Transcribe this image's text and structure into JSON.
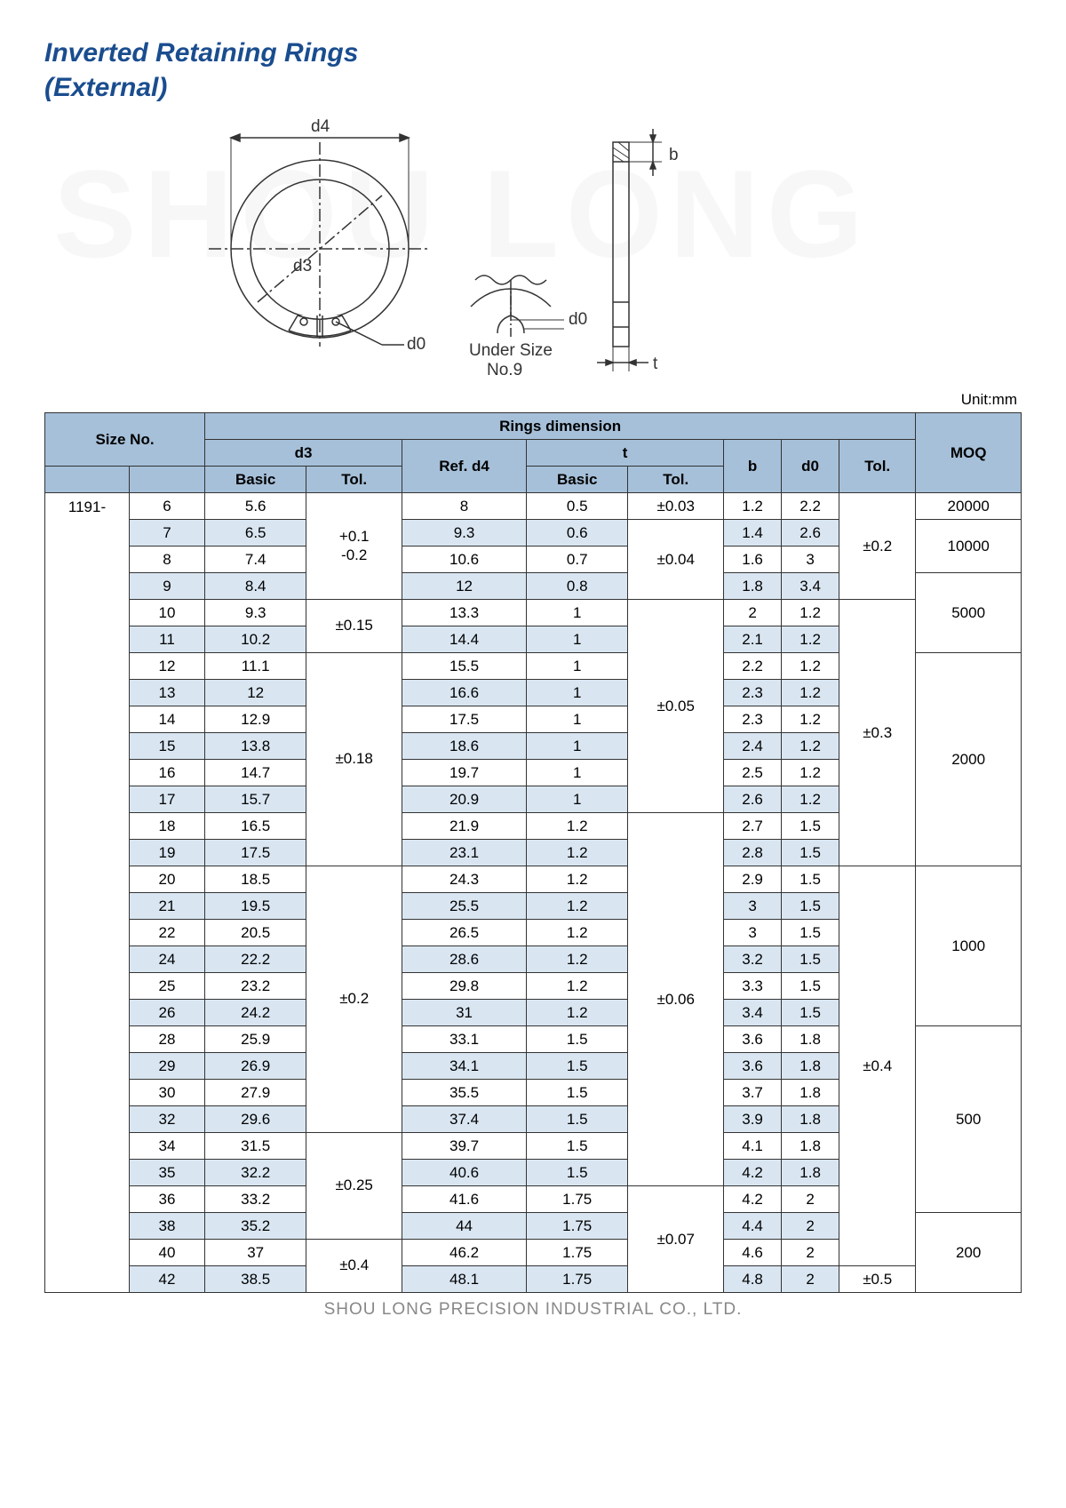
{
  "title_line1": "Inverted Retaining Rings",
  "title_line2": "(External)",
  "watermark": "SHOU LONG",
  "unit": "Unit:mm",
  "diagram": {
    "d4": "d4",
    "d3": "d3",
    "d0": "d0",
    "t": "t",
    "b": "b",
    "under": "Under Size",
    "no9": "No.9"
  },
  "headers": {
    "size_no": "Size No.",
    "rings_dim": "Rings dimension",
    "moq": "MOQ",
    "d3": "d3",
    "ref_d4": "Ref. d4",
    "t": "t",
    "b": "b",
    "d0": "d0",
    "tol": "Tol.",
    "basic": "Basic"
  },
  "prefix": "1191-",
  "rows": [
    {
      "sz": "6",
      "d3b": "5.6",
      "d4": "8",
      "tb": "0.5",
      "ttol": "±0.03",
      "b": "1.2",
      "d0": "2.2"
    },
    {
      "sz": "7",
      "d3b": "6.5",
      "d4": "9.3",
      "tb": "0.6",
      "b": "1.4",
      "d0": "2.6",
      "sh": 1
    },
    {
      "sz": "8",
      "d3b": "7.4",
      "d4": "10.6",
      "tb": "0.7",
      "b": "1.6",
      "d0": "3"
    },
    {
      "sz": "9",
      "d3b": "8.4",
      "d4": "12",
      "tb": "0.8",
      "b": "1.8",
      "d0": "3.4",
      "sh": 1
    },
    {
      "sz": "10",
      "d3b": "9.3",
      "d4": "13.3",
      "tb": "1",
      "b": "2",
      "d0": "1.2"
    },
    {
      "sz": "11",
      "d3b": "10.2",
      "d4": "14.4",
      "tb": "1",
      "b": "2.1",
      "d0": "1.2",
      "sh": 1
    },
    {
      "sz": "12",
      "d3b": "11.1",
      "d4": "15.5",
      "tb": "1",
      "b": "2.2",
      "d0": "1.2"
    },
    {
      "sz": "13",
      "d3b": "12",
      "d4": "16.6",
      "tb": "1",
      "b": "2.3",
      "d0": "1.2",
      "sh": 1
    },
    {
      "sz": "14",
      "d3b": "12.9",
      "d4": "17.5",
      "tb": "1",
      "b": "2.3",
      "d0": "1.2"
    },
    {
      "sz": "15",
      "d3b": "13.8",
      "d4": "18.6",
      "tb": "1",
      "b": "2.4",
      "d0": "1.2",
      "sh": 1
    },
    {
      "sz": "16",
      "d3b": "14.7",
      "d4": "19.7",
      "tb": "1",
      "b": "2.5",
      "d0": "1.2"
    },
    {
      "sz": "17",
      "d3b": "15.7",
      "d4": "20.9",
      "tb": "1",
      "b": "2.6",
      "d0": "1.2",
      "sh": 1
    },
    {
      "sz": "18",
      "d3b": "16.5",
      "d4": "21.9",
      "tb": "1.2",
      "b": "2.7",
      "d0": "1.5"
    },
    {
      "sz": "19",
      "d3b": "17.5",
      "d4": "23.1",
      "tb": "1.2",
      "b": "2.8",
      "d0": "1.5",
      "sh": 1
    },
    {
      "sz": "20",
      "d3b": "18.5",
      "d4": "24.3",
      "tb": "1.2",
      "b": "2.9",
      "d0": "1.5"
    },
    {
      "sz": "21",
      "d3b": "19.5",
      "d4": "25.5",
      "tb": "1.2",
      "b": "3",
      "d0": "1.5",
      "sh": 1
    },
    {
      "sz": "22",
      "d3b": "20.5",
      "d4": "26.5",
      "tb": "1.2",
      "b": "3",
      "d0": "1.5"
    },
    {
      "sz": "24",
      "d3b": "22.2",
      "d4": "28.6",
      "tb": "1.2",
      "b": "3.2",
      "d0": "1.5",
      "sh": 1
    },
    {
      "sz": "25",
      "d3b": "23.2",
      "d4": "29.8",
      "tb": "1.2",
      "b": "3.3",
      "d0": "1.5"
    },
    {
      "sz": "26",
      "d3b": "24.2",
      "d4": "31",
      "tb": "1.2",
      "b": "3.4",
      "d0": "1.5",
      "sh": 1
    },
    {
      "sz": "28",
      "d3b": "25.9",
      "d4": "33.1",
      "tb": "1.5",
      "b": "3.6",
      "d0": "1.8"
    },
    {
      "sz": "29",
      "d3b": "26.9",
      "d4": "34.1",
      "tb": "1.5",
      "b": "3.6",
      "d0": "1.8",
      "sh": 1
    },
    {
      "sz": "30",
      "d3b": "27.9",
      "d4": "35.5",
      "tb": "1.5",
      "b": "3.7",
      "d0": "1.8"
    },
    {
      "sz": "32",
      "d3b": "29.6",
      "d4": "37.4",
      "tb": "1.5",
      "b": "3.9",
      "d0": "1.8",
      "sh": 1
    },
    {
      "sz": "34",
      "d3b": "31.5",
      "d4": "39.7",
      "tb": "1.5",
      "b": "4.1",
      "d0": "1.8"
    },
    {
      "sz": "35",
      "d3b": "32.2",
      "d4": "40.6",
      "tb": "1.5",
      "b": "4.2",
      "d0": "1.8",
      "sh": 1
    },
    {
      "sz": "36",
      "d3b": "33.2",
      "d4": "41.6",
      "tb": "1.75",
      "b": "4.2",
      "d0": "2"
    },
    {
      "sz": "38",
      "d3b": "35.2",
      "d4": "44",
      "tb": "1.75",
      "b": "4.4",
      "d0": "2",
      "sh": 1
    },
    {
      "sz": "40",
      "d3b": "37",
      "d4": "46.2",
      "tb": "1.75",
      "b": "4.6",
      "d0": "2"
    },
    {
      "sz": "42",
      "d3b": "38.5",
      "d4": "48.1",
      "tb": "1.75",
      "b": "4.8",
      "d0": "2",
      "sh": 1
    }
  ],
  "d3tol": [
    {
      "span": 4,
      "val": "+0.1\n-0.2"
    },
    {
      "span": 2,
      "val": "±0.15"
    },
    {
      "span": 8,
      "val": "±0.18"
    },
    {
      "span": 10,
      "val": "±0.2"
    },
    {
      "span": 4,
      "val": "±0.25"
    },
    {
      "span": 2,
      "val": "±0.4"
    }
  ],
  "ttol": [
    {
      "start": 0,
      "span": 1,
      "val": "±0.03"
    },
    {
      "start": 1,
      "span": 3,
      "val": "±0.04"
    },
    {
      "start": 4,
      "span": 8,
      "val": "±0.05"
    },
    {
      "start": 12,
      "span": 14,
      "val": "±0.06"
    },
    {
      "start": 26,
      "span": 4,
      "val": "±0.07"
    }
  ],
  "tolCol": [
    {
      "span": 4,
      "val": "±0.2"
    },
    {
      "span": 10,
      "val": "±0.3"
    },
    {
      "span": 15,
      "val": "±0.4"
    },
    {
      "span": 1,
      "val": "±0.5"
    }
  ],
  "moq": [
    {
      "span": 1,
      "val": "20000"
    },
    {
      "span": 2,
      "val": "10000"
    },
    {
      "span": 3,
      "val": "5000"
    },
    {
      "span": 8,
      "val": "2000"
    },
    {
      "span": 6,
      "val": "1000"
    },
    {
      "span": 7,
      "val": "500"
    },
    {
      "span": 3,
      "val": "200"
    }
  ],
  "footer": "SHOU LONG PRECISION INDUSTRIAL CO., LTD."
}
